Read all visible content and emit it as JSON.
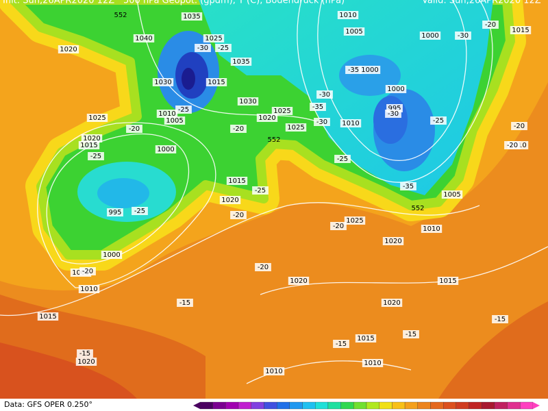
{
  "header": {
    "init": "Init: Sun,26APR2020 12Z",
    "title": "500 hPa Geopot. (gpdm), T (C), Bodendruck (hPa)",
    "valid": "Valid: Sun,26APR2020 12Z"
  },
  "pressure_labels": [
    1010,
    1005,
    1000,
    1015,
    1035,
    1040,
    1025,
    1020,
    1035,
    1000,
    1030,
    1015,
    1000,
    995,
    1030,
    1010,
    1005,
    1025,
    1020,
    1025,
    1025,
    1010,
    1020,
    1015,
    1000,
    1015,
    1020,
    995,
    1005,
    1025,
    1010,
    1020,
    1000,
    1005,
    1010,
    1020,
    1015,
    1020,
    1015,
    1015,
    1020,
    1010,
    1010,
    1010
  ],
  "temperature_labels": [
    -20,
    -30,
    -35,
    -30,
    -35,
    -30,
    -30,
    -25,
    -25,
    -20,
    -20,
    -25,
    -30,
    -25,
    -25,
    -35,
    -25,
    -25,
    -20,
    -20,
    -20,
    -20,
    -20,
    -15,
    -15,
    -15,
    -15,
    -15,
    -20
  ],
  "height_labels": [
    552,
    552,
    552
  ],
  "footer": "Data: GFS OPER 0.250°"
}
